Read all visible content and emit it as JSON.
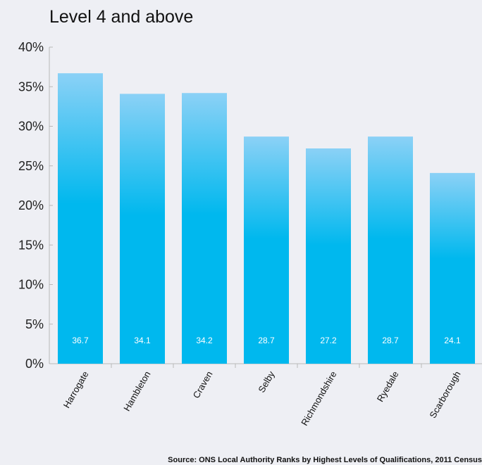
{
  "chart_data": {
    "type": "bar",
    "title": "Level 4 and above",
    "categories": [
      "Harrogate",
      "Hambleton",
      "Craven",
      "Selby",
      "Richmondshire",
      "Ryedale",
      "Scarborough"
    ],
    "values": [
      36.7,
      34.1,
      34.2,
      28.7,
      27.2,
      28.7,
      24.1
    ],
    "ylim": [
      0,
      40
    ],
    "y_ticks": [
      0,
      5,
      10,
      15,
      20,
      25,
      30,
      35,
      40
    ],
    "y_tick_format": "%",
    "xlabel": "",
    "ylabel": "",
    "grid": false,
    "bar_color_top": "#8bd1f6",
    "bar_color_bottom": "#00b8ee",
    "data_label_color": "#ffffff",
    "source": "Source: ONS Local Authority Ranks by Highest Levels of Qualifications, 2011 Census"
  }
}
